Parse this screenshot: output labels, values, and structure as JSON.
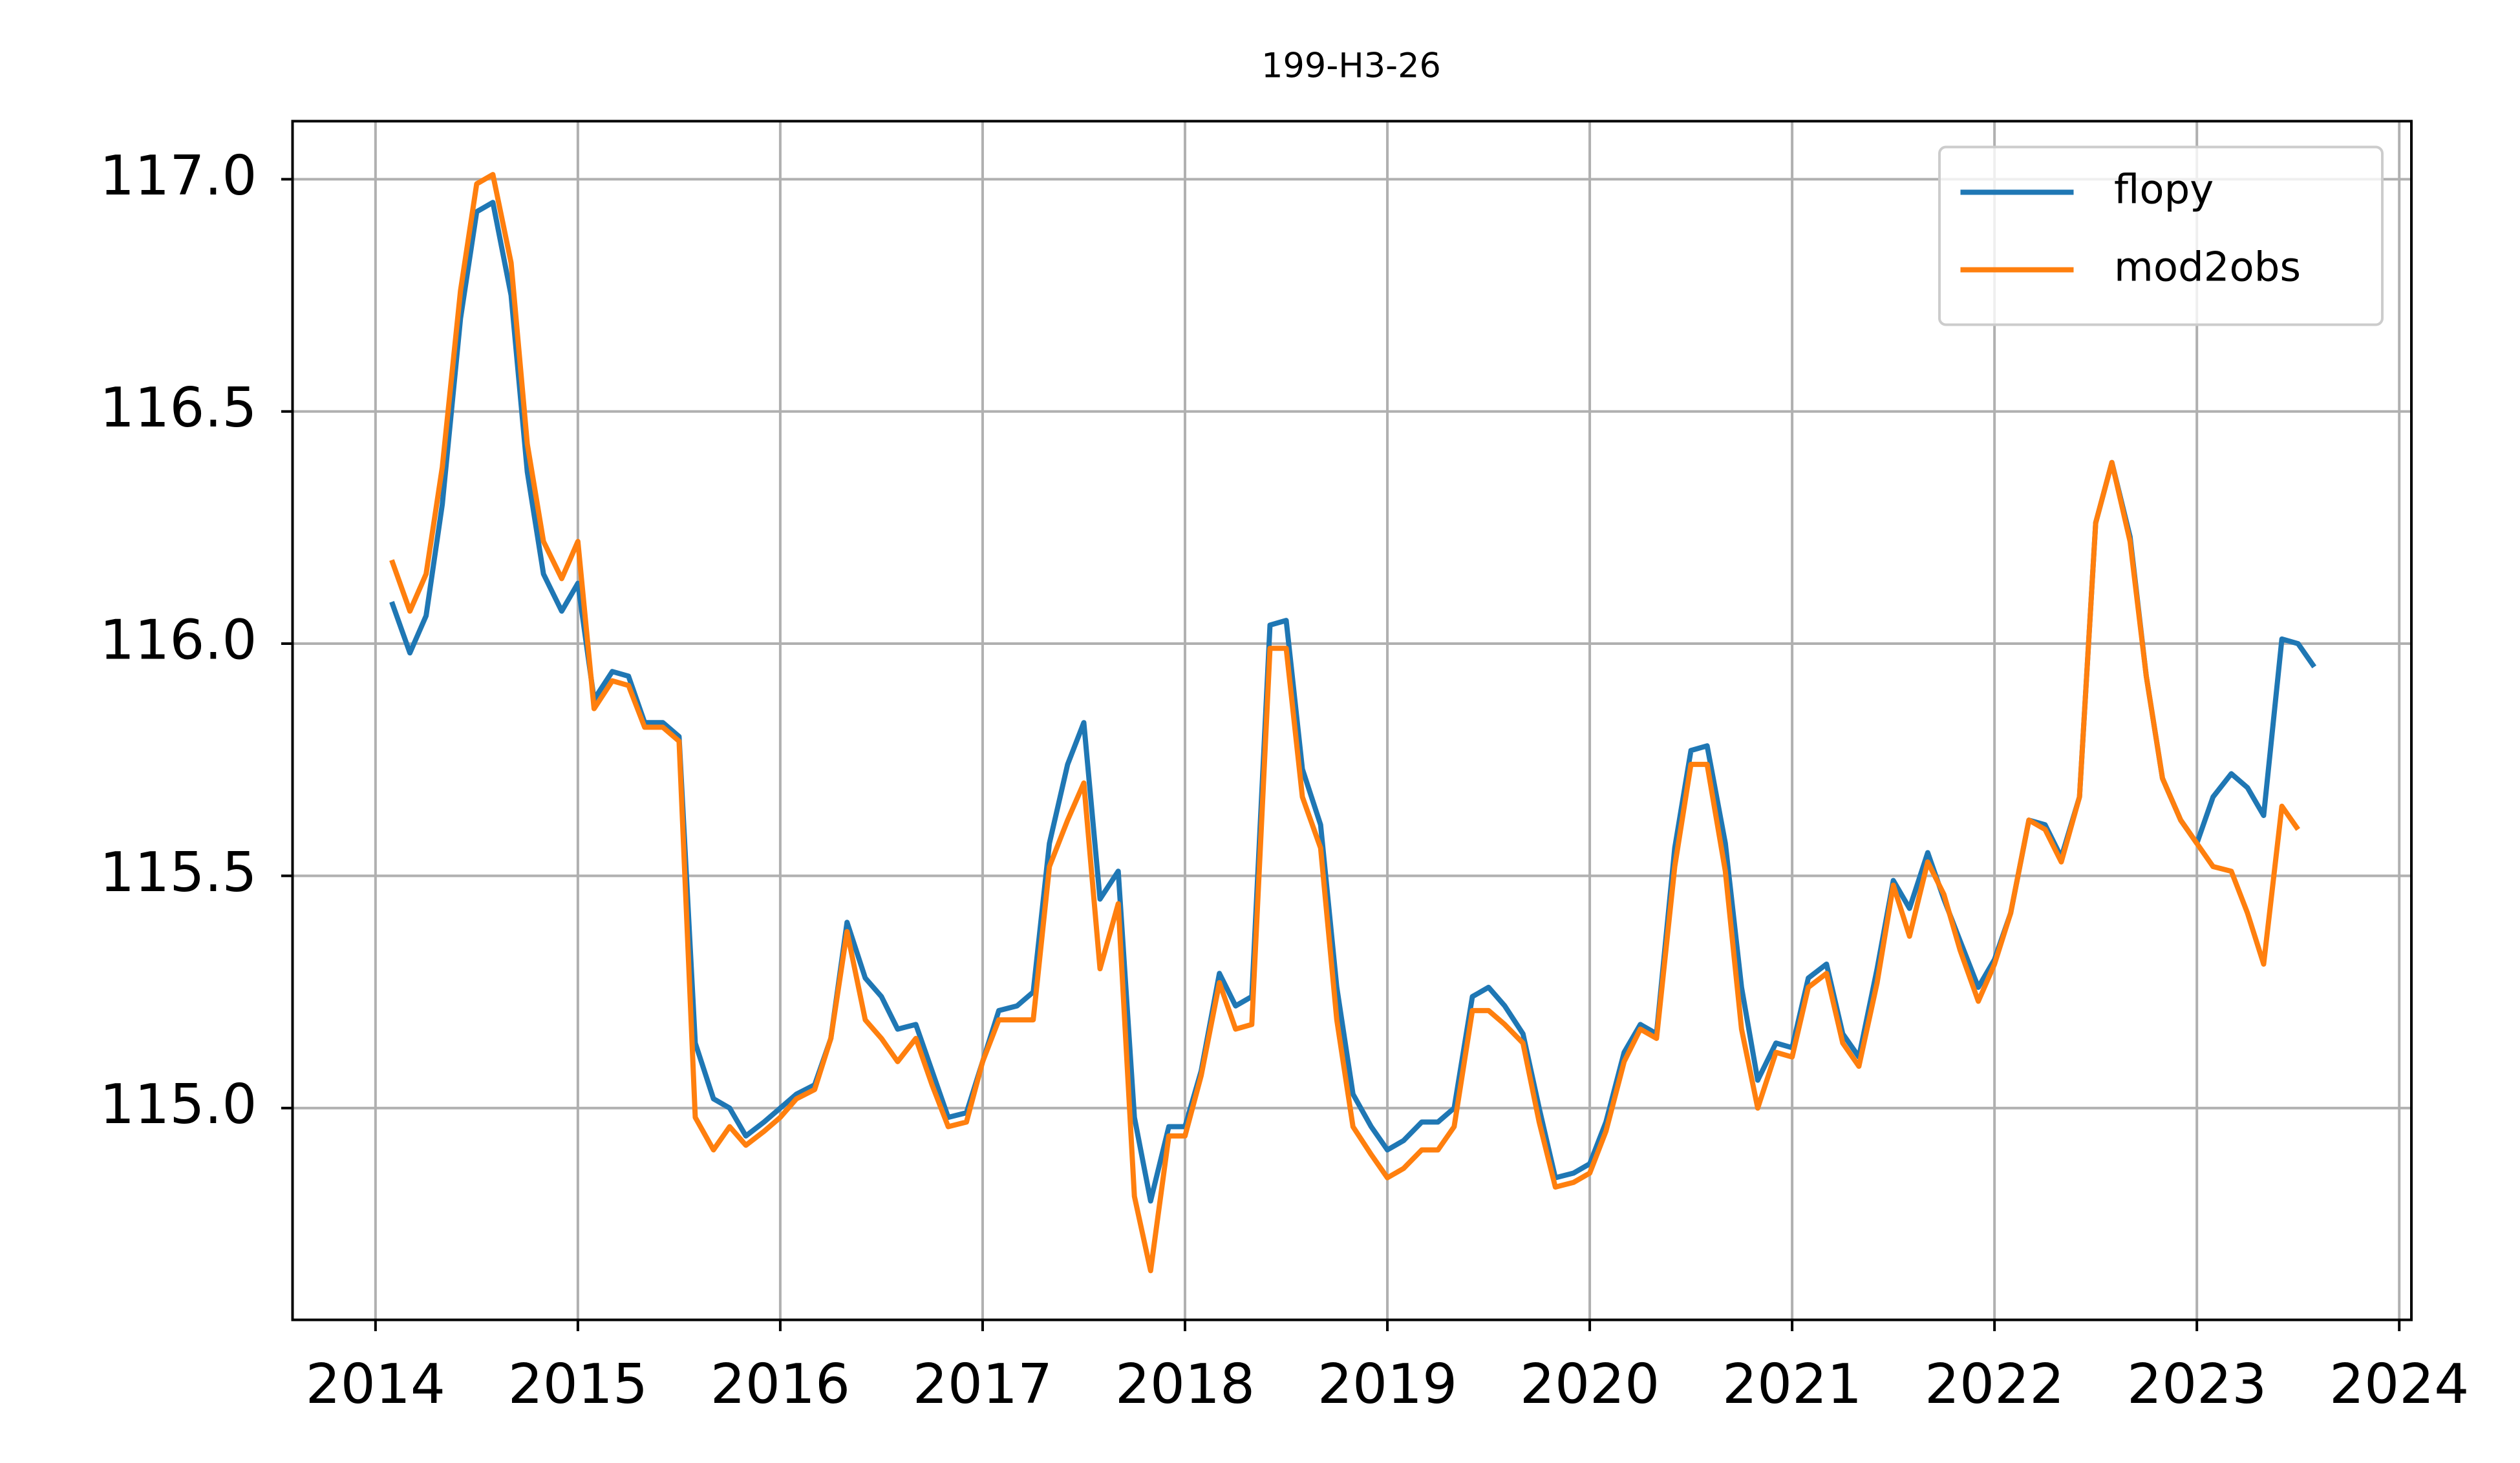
{
  "chart_data": {
    "type": "line",
    "title": "199-H3-26",
    "x": [
      2014.08,
      2014.17,
      2014.25,
      2014.33,
      2014.42,
      2014.5,
      2014.58,
      2014.67,
      2014.75,
      2014.83,
      2014.92,
      2015.0,
      2015.08,
      2015.17,
      2015.25,
      2015.33,
      2015.42,
      2015.5,
      2015.58,
      2015.67,
      2015.75,
      2015.83,
      2015.92,
      2016.0,
      2016.08,
      2016.17,
      2016.25,
      2016.33,
      2016.42,
      2016.5,
      2016.58,
      2016.67,
      2016.75,
      2016.83,
      2016.92,
      2017.0,
      2017.08,
      2017.17,
      2017.25,
      2017.33,
      2017.42,
      2017.5,
      2017.58,
      2017.67,
      2017.75,
      2017.83,
      2017.92,
      2018.0,
      2018.08,
      2018.17,
      2018.25,
      2018.33,
      2018.42,
      2018.5,
      2018.58,
      2018.67,
      2018.75,
      2018.83,
      2018.92,
      2019.0,
      2019.08,
      2019.17,
      2019.25,
      2019.33,
      2019.42,
      2019.5,
      2019.58,
      2019.67,
      2019.75,
      2019.83,
      2019.92,
      2020.0,
      2020.08,
      2020.17,
      2020.25,
      2020.33,
      2020.42,
      2020.5,
      2020.58,
      2020.67,
      2020.75,
      2020.83,
      2020.92,
      2021.0,
      2021.08,
      2021.17,
      2021.25,
      2021.33,
      2021.42,
      2021.5,
      2021.58,
      2021.67,
      2021.75,
      2021.83,
      2021.92,
      2022.0,
      2022.08,
      2022.17,
      2022.25,
      2022.33,
      2022.42,
      2022.5,
      2022.58,
      2022.67,
      2022.75,
      2022.83,
      2022.92,
      2023.0,
      2023.08,
      2023.17,
      2023.25,
      2023.33,
      2023.42,
      2023.5,
      2023.58
    ],
    "series": [
      {
        "name": "flopy",
        "color": "#1f77b4",
        "values": [
          116.09,
          115.98,
          116.06,
          116.3,
          116.7,
          116.93,
          116.95,
          116.75,
          116.37,
          116.15,
          116.07,
          116.13,
          115.88,
          115.94,
          115.93,
          115.83,
          115.83,
          115.8,
          115.14,
          115.02,
          115.0,
          114.94,
          114.97,
          115.0,
          115.03,
          115.05,
          115.15,
          115.4,
          115.28,
          115.24,
          115.17,
          115.18,
          115.08,
          114.98,
          114.99,
          115.1,
          115.21,
          115.22,
          115.25,
          115.57,
          115.74,
          115.83,
          115.45,
          115.51,
          114.98,
          114.8,
          114.96,
          114.96,
          115.08,
          115.29,
          115.22,
          115.24,
          116.04,
          116.05,
          115.73,
          115.61,
          115.26,
          115.03,
          114.96,
          114.91,
          114.93,
          114.97,
          114.97,
          115.0,
          115.24,
          115.26,
          115.22,
          115.16,
          115.0,
          114.85,
          114.86,
          114.88,
          114.97,
          115.12,
          115.18,
          115.16,
          115.56,
          115.77,
          115.78,
          115.57,
          115.26,
          115.06,
          115.14,
          115.13,
          115.28,
          115.31,
          115.16,
          115.11,
          115.3,
          115.49,
          115.43,
          115.55,
          115.45,
          115.36,
          115.26,
          115.32,
          115.42,
          115.62,
          115.61,
          115.54,
          115.67,
          116.26,
          116.39,
          116.23,
          115.93,
          115.71,
          115.62,
          115.57,
          115.67,
          115.72,
          115.69,
          115.63,
          116.01,
          116.0,
          115.95
        ]
      },
      {
        "name": "mod2obs",
        "color": "#ff7f0e",
        "values": [
          116.18,
          116.07,
          116.15,
          116.38,
          116.76,
          116.99,
          117.01,
          116.82,
          116.43,
          116.22,
          116.14,
          116.22,
          115.86,
          115.92,
          115.91,
          115.82,
          115.82,
          115.79,
          114.98,
          114.91,
          114.96,
          114.92,
          114.95,
          114.98,
          115.02,
          115.04,
          115.15,
          115.38,
          115.19,
          115.15,
          115.1,
          115.15,
          115.05,
          114.96,
          114.97,
          115.1,
          115.19,
          115.19,
          115.19,
          115.52,
          115.62,
          115.7,
          115.3,
          115.44,
          114.81,
          114.65,
          114.94,
          114.94,
          115.07,
          115.27,
          115.17,
          115.18,
          115.99,
          115.99,
          115.67,
          115.56,
          115.19,
          114.96,
          114.9,
          114.85,
          114.87,
          114.91,
          114.91,
          114.96,
          115.21,
          115.21,
          115.18,
          115.14,
          114.97,
          114.83,
          114.84,
          114.86,
          114.95,
          115.1,
          115.17,
          115.15,
          115.52,
          115.74,
          115.74,
          115.51,
          115.17,
          115.0,
          115.12,
          115.11,
          115.26,
          115.29,
          115.14,
          115.09,
          115.27,
          115.48,
          115.37,
          115.53,
          115.46,
          115.34,
          115.23,
          115.31,
          115.42,
          115.62,
          115.6,
          115.53,
          115.67,
          116.26,
          116.39,
          116.22,
          115.93,
          115.71,
          115.62,
          115.57,
          115.52,
          115.51,
          115.42,
          115.31,
          115.65,
          115.6,
          null
        ]
      }
    ],
    "xlim": [
      2013.59,
      2024.06
    ],
    "xticks": [
      2014,
      2015,
      2016,
      2017,
      2018,
      2019,
      2020,
      2021,
      2022,
      2023,
      2024
    ],
    "ylim": [
      114.544,
      117.125
    ],
    "yticks": [
      {
        "value": 115,
        "label": "115.0"
      },
      115.5,
      {
        "value": 116,
        "label": "116.0"
      },
      116.5,
      {
        "value": 117,
        "label": "117.0"
      }
    ],
    "grid": true,
    "legend": "upper right"
  }
}
